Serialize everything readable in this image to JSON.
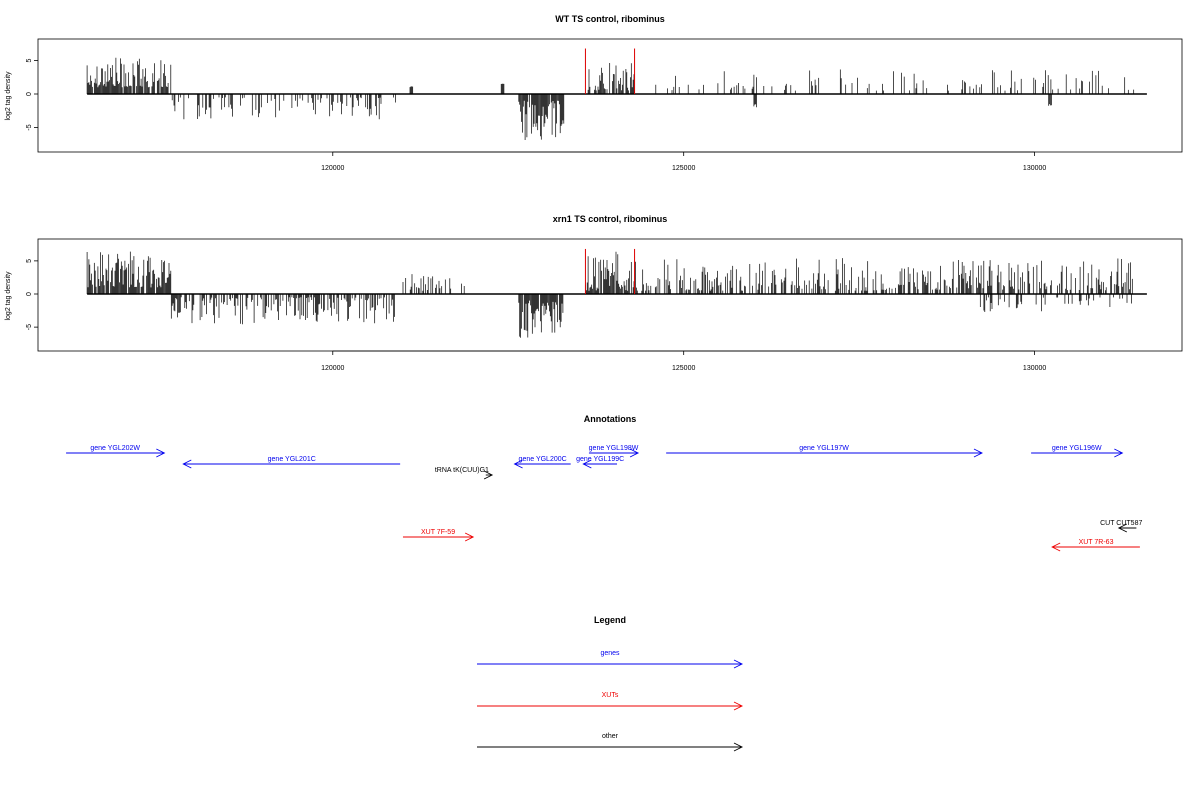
{
  "chart_data": [
    {
      "type": "bar",
      "title": "WT TS control, ribominus",
      "ylabel": "log2 tag density",
      "xlabel": "",
      "xlim": [
        115800,
        132100
      ],
      "ylim": [
        -8,
        8
      ],
      "xticks": [
        120000,
        125000,
        130000
      ],
      "yticks": [
        -5,
        0,
        5
      ],
      "markers": [
        123600,
        124300
      ],
      "marker_color": "#dd0000",
      "segments": [
        {
          "from": 116500,
          "to": 117700,
          "sign": 1,
          "min": 1,
          "max": 5.5,
          "density": 0.85
        },
        {
          "from": 117700,
          "to": 120900,
          "sign": -1,
          "min": 0.5,
          "max": 3.8,
          "density": 0.35
        },
        {
          "from": 121100,
          "to": 121150,
          "sign": 1,
          "min": 1,
          "max": 1.2,
          "density": 1
        },
        {
          "from": 122400,
          "to": 122450,
          "sign": 1,
          "min": 1.5,
          "max": 1.6,
          "density": 1
        },
        {
          "from": 122650,
          "to": 123300,
          "sign": -1,
          "min": 1,
          "max": 7,
          "density": 0.95
        },
        {
          "from": 123600,
          "to": 124300,
          "sign": 1,
          "min": 0.5,
          "max": 4.8,
          "density": 0.6
        },
        {
          "from": 124500,
          "to": 131500,
          "sign": 1,
          "min": 0.5,
          "max": 3.8,
          "density": 0.18
        },
        {
          "from": 126000,
          "to": 126050,
          "sign": -1,
          "min": 1.5,
          "max": 2,
          "density": 1
        },
        {
          "from": 130200,
          "to": 130250,
          "sign": -1,
          "min": 1.5,
          "max": 2,
          "density": 1
        }
      ]
    },
    {
      "type": "bar",
      "title": "xrn1 TS control, ribominus",
      "ylabel": "log2 tag density",
      "xlabel": "",
      "xlim": [
        115800,
        132100
      ],
      "ylim": [
        -8,
        8
      ],
      "xticks": [
        120000,
        125000,
        130000
      ],
      "yticks": [
        -5,
        0,
        5
      ],
      "markers": [
        123600,
        124300
      ],
      "marker_color": "#dd0000",
      "segments": [
        {
          "from": 116500,
          "to": 117700,
          "sign": 1,
          "min": 1,
          "max": 6.5,
          "density": 0.9
        },
        {
          "from": 117700,
          "to": 120900,
          "sign": -1,
          "min": 0.5,
          "max": 4.8,
          "density": 0.6
        },
        {
          "from": 121000,
          "to": 121900,
          "sign": 1,
          "min": 0.5,
          "max": 3.2,
          "density": 0.4
        },
        {
          "from": 122650,
          "to": 123300,
          "sign": -1,
          "min": 1,
          "max": 7,
          "density": 0.95
        },
        {
          "from": 123600,
          "to": 124300,
          "sign": 1,
          "min": 0.5,
          "max": 6.5,
          "density": 0.85
        },
        {
          "from": 124300,
          "to": 131400,
          "sign": 1,
          "min": 0.5,
          "max": 5.5,
          "density": 0.55
        },
        {
          "from": 129200,
          "to": 131400,
          "sign": -1,
          "min": 0.5,
          "max": 2.8,
          "density": 0.25
        }
      ]
    }
  ],
  "annotations": {
    "title": "Annotations",
    "xlim": [
      115800,
      132100
    ],
    "features": [
      {
        "label": "gene YGL202W",
        "start": 116200,
        "end": 117600,
        "strand": "+",
        "color": "#0000ee",
        "row": 0
      },
      {
        "label": "gene YGL201C",
        "start": 117870,
        "end": 120960,
        "strand": "-",
        "color": "#0000ee",
        "row": 1
      },
      {
        "label": "tRNA tK(CUU)G1",
        "start": 122180,
        "end": 122270,
        "strand": "+",
        "color": "#000000",
        "row": 2
      },
      {
        "label": "gene YGL200C",
        "start": 122590,
        "end": 123390,
        "strand": "-",
        "color": "#0000ee",
        "row": 1
      },
      {
        "label": "gene YGL199C",
        "start": 123570,
        "end": 124050,
        "strand": "-",
        "color": "#0000ee",
        "row": 1
      },
      {
        "label": "gene YGL198W",
        "start": 123650,
        "end": 124350,
        "strand": "+",
        "color": "#0000ee",
        "row": 0
      },
      {
        "label": "gene YGL197W",
        "start": 124750,
        "end": 129250,
        "strand": "+",
        "color": "#0000ee",
        "row": 0
      },
      {
        "label": "gene YGL196W",
        "start": 129950,
        "end": 131250,
        "strand": "+",
        "color": "#0000ee",
        "row": 0
      },
      {
        "label": "XUT 7F-59",
        "start": 121000,
        "end": 122000,
        "strand": "+",
        "color": "#ee0000",
        "row": 5
      },
      {
        "label": "CUT CUT587",
        "start": 131200,
        "end": 131450,
        "strand": "-",
        "color": "#000000",
        "row": 4
      },
      {
        "label": "XUT 7R-63",
        "start": 130250,
        "end": 131500,
        "strand": "-",
        "color": "#ee0000",
        "row": 6
      }
    ]
  },
  "legend": {
    "title": "Legend",
    "items": [
      {
        "label": "genes",
        "color": "#0000ee"
      },
      {
        "label": "XUTs",
        "color": "#ee0000"
      },
      {
        "label": "other",
        "color": "#000000"
      }
    ]
  }
}
